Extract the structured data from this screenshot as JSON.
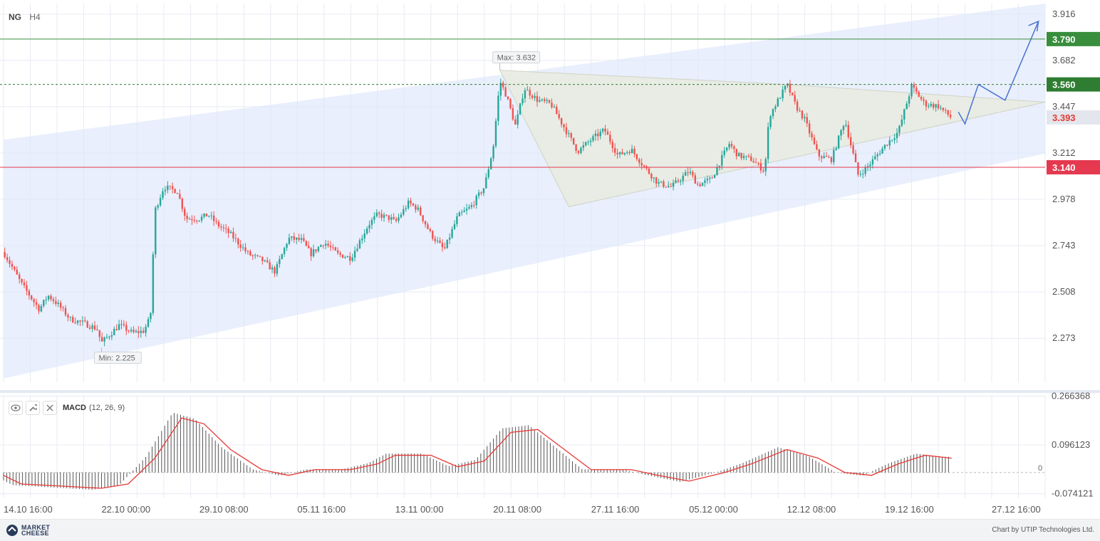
{
  "header": {
    "symbol": "NG",
    "timeframe": "H4"
  },
  "colors": {
    "up": "#26a69a",
    "down": "#ef5350",
    "resistance": "#388e3c",
    "support": "#e53950",
    "channel": "#dde6fa",
    "triangle": "#e9ebe1",
    "forecast": "#4a72d2",
    "macd_signal": "#e53935",
    "macd_hist": "#555555"
  },
  "chart_data": [
    {
      "type": "candlestick",
      "symbol": "NG",
      "timeframe": "H4",
      "y_ticks": [
        "3.916",
        "3.682",
        "3.447",
        "3.212",
        "2.978",
        "2.743",
        "2.508",
        "2.273"
      ],
      "x_ticks": [
        "14.10 16:00",
        "22.10 00:00",
        "29.10 08:00",
        "05.11 16:00",
        "13.11 00:00",
        "20.11 08:00",
        "27.11 16:00",
        "05.12 00:00",
        "12.12 08:00",
        "19.12 16:00",
        "27.12 16:00"
      ],
      "ylim": [
        2.05,
        3.97
      ],
      "x_range": [
        "14.10 16:00",
        "31.12 16:00"
      ],
      "close_path": [
        [
          "14.10 16:00",
          2.71
        ],
        [
          "16.10 00:00",
          2.55
        ],
        [
          "17.10 08:00",
          2.42
        ],
        [
          "18.10 00:00",
          2.49
        ],
        [
          "18.10 16:00",
          2.45
        ],
        [
          "19.10 16:00",
          2.37
        ],
        [
          "20.10 16:00",
          2.35
        ],
        [
          "21.10 16:00",
          2.32
        ],
        [
          "22.10 00:00",
          2.25
        ],
        [
          "23.10 08:00",
          2.34
        ],
        [
          "24.10 08:00",
          2.3
        ],
        [
          "25.10 04:00",
          2.31
        ],
        [
          "25.10 16:00",
          2.38
        ],
        [
          "26.10 00:00",
          2.92
        ],
        [
          "26.10 16:00",
          3.04
        ],
        [
          "27.10 16:00",
          3.02
        ],
        [
          "28.10 08:00",
          2.88
        ],
        [
          "29.10 08:00",
          2.88
        ],
        [
          "30.10 00:00",
          2.9
        ],
        [
          "30.10 16:00",
          2.85
        ],
        [
          "31.10 16:00",
          2.8
        ],
        [
          "02.11 00:00",
          2.7
        ],
        [
          "03.11 00:00",
          2.67
        ],
        [
          "04.11 00:00",
          2.61
        ],
        [
          "05.11 00:00",
          2.78
        ],
        [
          "06.11 00:00",
          2.77
        ],
        [
          "06.11 16:00",
          2.7
        ],
        [
          "07.11 16:00",
          2.76
        ],
        [
          "08.11 16:00",
          2.7
        ],
        [
          "09.11 16:00",
          2.68
        ],
        [
          "11.11 00:00",
          2.85
        ],
        [
          "11.11 16:00",
          2.9
        ],
        [
          "12.11 16:00",
          2.88
        ],
        [
          "13.11 00:00",
          2.86
        ],
        [
          "14.11 00:00",
          2.96
        ],
        [
          "14.11 16:00",
          2.93
        ],
        [
          "15.11 16:00",
          2.8
        ],
        [
          "16.11 16:00",
          2.72
        ],
        [
          "17.11 16:00",
          2.89
        ],
        [
          "18.11 16:00",
          2.94
        ],
        [
          "19.11 16:00",
          3.04
        ],
        [
          "20.11 08:00",
          3.24
        ],
        [
          "20.11 20:00",
          3.58
        ],
        [
          "21.11 08:00",
          3.5
        ],
        [
          "22.11 00:00",
          3.35
        ],
        [
          "22.11 16:00",
          3.54
        ],
        [
          "23.11 16:00",
          3.48
        ],
        [
          "24.11 16:00",
          3.46
        ],
        [
          "25.11 08:00",
          3.38
        ],
        [
          "26.11 16:00",
          3.22
        ],
        [
          "27.11 16:00",
          3.28
        ],
        [
          "28.11 16:00",
          3.33
        ],
        [
          "29.11 16:00",
          3.2
        ],
        [
          "30.11 16:00",
          3.23
        ],
        [
          "01.12 16:00",
          3.14
        ],
        [
          "02.12 16:00",
          3.06
        ],
        [
          "03.12 16:00",
          3.04
        ],
        [
          "05.12 00:00",
          3.12
        ],
        [
          "05.12 16:00",
          3.05
        ],
        [
          "06.12 16:00",
          3.08
        ],
        [
          "08.12 00:00",
          3.26
        ],
        [
          "08.12 16:00",
          3.2
        ],
        [
          "09.12 16:00",
          3.18
        ],
        [
          "10.12 16:00",
          3.12
        ],
        [
          "11.12 00:00",
          3.4
        ],
        [
          "12.12 08:00",
          3.56
        ],
        [
          "13.12 00:00",
          3.45
        ],
        [
          "13.12 16:00",
          3.38
        ],
        [
          "14.12 16:00",
          3.2
        ],
        [
          "15.12 16:00",
          3.18
        ],
        [
          "16.12 16:00",
          3.38
        ],
        [
          "17.12 16:00",
          3.1
        ],
        [
          "18.12 08:00",
          3.14
        ],
        [
          "19.12 16:00",
          3.25
        ],
        [
          "20.12 16:00",
          3.32
        ],
        [
          "21.12 16:00",
          3.55
        ],
        [
          "22.12 16:00",
          3.46
        ],
        [
          "23.12 16:00",
          3.45
        ],
        [
          "24.12 16:00",
          3.39
        ]
      ],
      "candle_count": 390,
      "levels": [
        {
          "value": 3.79,
          "label": "3.790",
          "style": "solid",
          "color": "#388e3c"
        },
        {
          "value": 3.56,
          "label": "3.560",
          "style": "dashed",
          "color": "#2e7d32"
        },
        {
          "value": 3.14,
          "label": "3.140",
          "style": "solid",
          "color": "#e53950"
        }
      ],
      "current_price": {
        "value": 3.393,
        "label": "3.393"
      },
      "annotations": [
        {
          "text": "Max: 3.632",
          "date": "20.11 20:00",
          "value": 3.632
        },
        {
          "text": "Min: 2.225",
          "date": "22.10 00:00",
          "value": 2.225
        }
      ],
      "channel": [
        {
          "upper_start": [
            "14.10 16:00",
            3.28
          ],
          "upper_end": [
            "31.12 16:00",
            3.97
          ]
        },
        {
          "lower_start": [
            "14.10 16:00",
            2.07
          ],
          "lower_end": [
            "31.12 16:00",
            3.21
          ]
        }
      ],
      "triangle": [
        [
          "20.11 20:00",
          3.632
        ],
        [
          "26.11 00:00",
          2.94
        ],
        [
          "31.12 16:00",
          3.47
        ],
        [
          "12.12 08:00",
          3.56
        ]
      ],
      "forecast_path": [
        [
          "25.12 04:00",
          3.42
        ],
        [
          "25.12 16:00",
          3.36
        ],
        [
          "26.12 16:00",
          3.56
        ],
        [
          "28.12 16:00",
          3.48
        ],
        [
          "31.12 04:00",
          3.88
        ]
      ]
    },
    {
      "type": "macd",
      "name": "MACD",
      "params": "(12, 26, 9)",
      "y_ticks": [
        "0.266368",
        "0.096123",
        "-0.074121"
      ],
      "zero_label": "0",
      "ylim": [
        -0.09,
        0.27
      ],
      "signal_path": [
        [
          "14.10 16:00",
          -0.01
        ],
        [
          "16.10 00:00",
          -0.04
        ],
        [
          "18.10 00:00",
          -0.045
        ],
        [
          "20.10 00:00",
          -0.05
        ],
        [
          "22.10 00:00",
          -0.055
        ],
        [
          "24.10 00:00",
          -0.04
        ],
        [
          "26.10 00:00",
          0.05
        ],
        [
          "28.10 00:00",
          0.19
        ],
        [
          "29.10 16:00",
          0.17
        ],
        [
          "31.10 16:00",
          0.08
        ],
        [
          "03.11 00:00",
          0.01
        ],
        [
          "05.11 00:00",
          -0.01
        ],
        [
          "07.11 00:00",
          0.01
        ],
        [
          "09.11 16:00",
          0.01
        ],
        [
          "11.11 16:00",
          0.03
        ],
        [
          "13.11 00:00",
          0.06
        ],
        [
          "15.11 16:00",
          0.06
        ],
        [
          "17.11 16:00",
          0.02
        ],
        [
          "19.11 16:00",
          0.04
        ],
        [
          "21.11 16:00",
          0.14
        ],
        [
          "23.11 16:00",
          0.15
        ],
        [
          "25.11 16:00",
          0.08
        ],
        [
          "27.11 16:00",
          0.01
        ],
        [
          "30.11 16:00",
          0.01
        ],
        [
          "02.12 16:00",
          -0.01
        ],
        [
          "05.12 00:00",
          -0.03
        ],
        [
          "07.12 16:00",
          0.0
        ],
        [
          "09.12 16:00",
          0.03
        ],
        [
          "12.12 08:00",
          0.08
        ],
        [
          "14.12 16:00",
          0.05
        ],
        [
          "16.12 16:00",
          0.0
        ],
        [
          "18.12 16:00",
          -0.01
        ],
        [
          "20.12 16:00",
          0.03
        ],
        [
          "22.12 16:00",
          0.06
        ],
        [
          "24.12 16:00",
          0.05
        ]
      ]
    }
  ],
  "footer": {
    "logo_line1": "MARKET",
    "logo_line2": "CHEESE",
    "credit": "Chart by UTIP Technologies Ltd."
  }
}
